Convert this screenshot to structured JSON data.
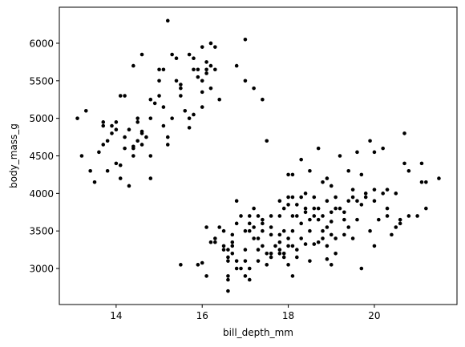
{
  "chart_data": {
    "type": "scatter",
    "title": "",
    "xlabel": "bill_depth_mm",
    "ylabel": "body_mass_g",
    "xlim": [
      12.68,
      21.92
    ],
    "ylim": [
      2520,
      6480
    ],
    "xticks": [
      14,
      16,
      18,
      20
    ],
    "yticks": [
      3000,
      3500,
      4000,
      4500,
      5000,
      5500,
      6000
    ],
    "grid": false,
    "marker_color": "#000000",
    "points": [
      [
        13.1,
        5000
      ],
      [
        13.2,
        4500
      ],
      [
        13.4,
        4300
      ],
      [
        13.5,
        4150
      ],
      [
        13.6,
        4550
      ],
      [
        13.7,
        4650
      ],
      [
        13.7,
        4900
      ],
      [
        13.7,
        4950
      ],
      [
        13.8,
        4700
      ],
      [
        13.8,
        4300
      ],
      [
        13.9,
        4800
      ],
      [
        14.0,
        4400
      ],
      [
        14.0,
        4850
      ],
      [
        14.1,
        4375
      ],
      [
        14.1,
        4200
      ],
      [
        14.2,
        4600
      ],
      [
        14.2,
        4750
      ],
      [
        14.3,
        4850
      ],
      [
        14.4,
        4600
      ],
      [
        14.4,
        4500
      ],
      [
        14.5,
        4950
      ],
      [
        14.5,
        4700
      ],
      [
        14.6,
        4650
      ],
      [
        14.6,
        4800
      ],
      [
        14.7,
        4750
      ],
      [
        14.8,
        5000
      ],
      [
        14.8,
        4500
      ],
      [
        14.9,
        5200
      ],
      [
        15.0,
        5300
      ],
      [
        15.0,
        5500
      ],
      [
        15.1,
        4900
      ],
      [
        15.1,
        5150
      ],
      [
        15.2,
        4650
      ],
      [
        15.3,
        5000
      ],
      [
        15.4,
        5500
      ],
      [
        15.5,
        5300
      ],
      [
        15.6,
        5100
      ],
      [
        15.7,
        5000
      ],
      [
        15.8,
        5050
      ],
      [
        15.9,
        5550
      ],
      [
        16.0,
        5500
      ],
      [
        16.1,
        5650
      ],
      [
        16.2,
        5700
      ],
      [
        16.3,
        5650
      ],
      [
        16.4,
        5250
      ],
      [
        13.3,
        5100
      ],
      [
        14.6,
        5850
      ],
      [
        15.1,
        5650
      ],
      [
        15.2,
        6300
      ],
      [
        15.5,
        5450
      ],
      [
        15.7,
        5850
      ],
      [
        15.8,
        5650
      ],
      [
        16.0,
        5950
      ],
      [
        16.2,
        6000
      ],
      [
        16.3,
        5950
      ],
      [
        16.8,
        5700
      ],
      [
        17.0,
        6050
      ],
      [
        17.2,
        5400
      ],
      [
        17.4,
        5250
      ],
      [
        17.0,
        5500
      ],
      [
        16.1,
        5750
      ],
      [
        15.8,
        5800
      ],
      [
        16.0,
        5350
      ],
      [
        15.4,
        5800
      ],
      [
        15.0,
        5650
      ],
      [
        14.8,
        5250
      ],
      [
        14.4,
        5700
      ],
      [
        14.2,
        5300
      ],
      [
        14.1,
        5300
      ],
      [
        14.0,
        4950
      ],
      [
        14.3,
        4100
      ],
      [
        13.9,
        4900
      ],
      [
        15.7,
        4875
      ],
      [
        15.2,
        4750
      ],
      [
        16.2,
        5400
      ],
      [
        15.3,
        5850
      ],
      [
        15.5,
        5400
      ],
      [
        15.9,
        5650
      ],
      [
        16.1,
        5600
      ],
      [
        16.0,
        5150
      ],
      [
        14.5,
        5000
      ],
      [
        14.4,
        4625
      ],
      [
        14.6,
        4825
      ],
      [
        14.8,
        4200
      ],
      [
        15.5,
        3050
      ],
      [
        15.9,
        3050
      ],
      [
        16.0,
        3075
      ],
      [
        16.1,
        3550
      ],
      [
        16.1,
        2900
      ],
      [
        16.2,
        3350
      ],
      [
        16.3,
        3400
      ],
      [
        16.5,
        3300
      ],
      [
        16.6,
        3150
      ],
      [
        16.6,
        3250
      ],
      [
        16.6,
        2700
      ],
      [
        16.6,
        2850
      ],
      [
        16.6,
        2900
      ],
      [
        16.7,
        3200
      ],
      [
        16.7,
        3350
      ],
      [
        16.8,
        3000
      ],
      [
        16.8,
        3600
      ],
      [
        16.8,
        3900
      ],
      [
        16.9,
        3000
      ],
      [
        17.0,
        3500
      ],
      [
        17.0,
        3250
      ],
      [
        17.0,
        2900
      ],
      [
        17.1,
        3600
      ],
      [
        17.1,
        3700
      ],
      [
        17.1,
        2850
      ],
      [
        17.2,
        3550
      ],
      [
        17.2,
        3400
      ],
      [
        17.3,
        3700
      ],
      [
        17.3,
        3250
      ],
      [
        17.4,
        3500
      ],
      [
        17.4,
        3650
      ],
      [
        17.4,
        3300
      ],
      [
        17.5,
        3200
      ],
      [
        17.6,
        3450
      ],
      [
        17.6,
        3550
      ],
      [
        17.7,
        3300
      ],
      [
        17.8,
        3350
      ],
      [
        17.8,
        3200
      ],
      [
        17.8,
        3450
      ],
      [
        17.9,
        3500
      ],
      [
        17.9,
        3800
      ],
      [
        18.0,
        3950
      ],
      [
        18.0,
        3400
      ],
      [
        18.0,
        3300
      ],
      [
        18.1,
        3500
      ],
      [
        18.1,
        3700
      ],
      [
        18.1,
        3950
      ],
      [
        18.2,
        3700
      ],
      [
        18.2,
        3850
      ],
      [
        18.2,
        3150
      ],
      [
        18.3,
        3400
      ],
      [
        18.3,
        3600
      ],
      [
        18.4,
        3750
      ],
      [
        18.4,
        3325
      ],
      [
        18.5,
        3500
      ],
      [
        18.5,
        4300
      ],
      [
        18.6,
        3700
      ],
      [
        18.6,
        3800
      ],
      [
        18.6,
        3950
      ],
      [
        18.7,
        3800
      ],
      [
        18.7,
        3350
      ],
      [
        18.8,
        3700
      ],
      [
        18.8,
        3500
      ],
      [
        18.9,
        3900
      ],
      [
        18.9,
        3550
      ],
      [
        19.0,
        3750
      ],
      [
        19.0,
        3625
      ],
      [
        19.1,
        3400
      ],
      [
        19.1,
        3800
      ],
      [
        19.2,
        3800
      ],
      [
        19.3,
        3450
      ],
      [
        19.3,
        3650
      ],
      [
        19.4,
        4300
      ],
      [
        19.5,
        3400
      ],
      [
        19.5,
        4050
      ],
      [
        19.6,
        3650
      ],
      [
        19.7,
        3850
      ],
      [
        19.8,
        3950
      ],
      [
        19.9,
        3500
      ],
      [
        20.0,
        4050
      ],
      [
        20.0,
        3900
      ],
      [
        20.1,
        3650
      ],
      [
        20.2,
        4000
      ],
      [
        20.3,
        3700
      ],
      [
        20.5,
        4000
      ],
      [
        20.6,
        3600
      ],
      [
        20.7,
        4400
      ],
      [
        21.1,
        4150
      ],
      [
        21.2,
        4150
      ],
      [
        21.5,
        4200
      ],
      [
        16.6,
        3100
      ],
      [
        16.9,
        3700
      ],
      [
        17.1,
        3500
      ],
      [
        17.3,
        3400
      ],
      [
        17.5,
        4700
      ],
      [
        17.6,
        3700
      ],
      [
        17.8,
        3700
      ],
      [
        17.9,
        3150
      ],
      [
        18.0,
        4250
      ],
      [
        18.1,
        4250
      ],
      [
        18.1,
        3300
      ],
      [
        18.3,
        4450
      ],
      [
        18.4,
        3800
      ],
      [
        18.5,
        3650
      ],
      [
        18.7,
        4600
      ],
      [
        18.8,
        4150
      ],
      [
        18.9,
        4200
      ],
      [
        19.0,
        4100
      ],
      [
        19.1,
        3950
      ],
      [
        19.2,
        4500
      ],
      [
        19.4,
        3900
      ],
      [
        19.5,
        3950
      ],
      [
        19.6,
        4550
      ],
      [
        19.7,
        4250
      ],
      [
        19.9,
        4700
      ],
      [
        20.0,
        4550
      ],
      [
        20.0,
        3300
      ],
      [
        20.2,
        4600
      ],
      [
        20.3,
        4050
      ],
      [
        20.4,
        3450
      ],
      [
        20.7,
        4800
      ],
      [
        20.8,
        4300
      ],
      [
        21.1,
        4400
      ],
      [
        21.2,
        3800
      ],
      [
        16.4,
        3550
      ],
      [
        16.5,
        3500
      ],
      [
        16.7,
        3450
      ],
      [
        17.2,
        3800
      ],
      [
        17.4,
        3600
      ],
      [
        17.6,
        3200
      ],
      [
        17.8,
        3900
      ],
      [
        17.9,
        3200
      ],
      [
        18.0,
        3850
      ],
      [
        18.2,
        3250
      ],
      [
        18.3,
        3950
      ],
      [
        18.4,
        4000
      ],
      [
        18.6,
        3325
      ],
      [
        18.7,
        3650
      ],
      [
        18.8,
        3400
      ],
      [
        18.9,
        3300
      ],
      [
        19.0,
        3450
      ],
      [
        19.1,
        3200
      ],
      [
        19.3,
        3750
      ],
      [
        19.4,
        3550
      ],
      [
        19.6,
        3900
      ],
      [
        19.8,
        4000
      ],
      [
        20.3,
        3800
      ],
      [
        20.5,
        3550
      ],
      [
        20.6,
        3650
      ],
      [
        20.8,
        3700
      ],
      [
        21.0,
        3700
      ],
      [
        16.3,
        3350
      ],
      [
        16.5,
        3250
      ],
      [
        16.7,
        3300
      ],
      [
        17.0,
        3100
      ],
      [
        17.1,
        3000
      ],
      [
        17.3,
        3100
      ],
      [
        17.6,
        3150
      ],
      [
        17.8,
        3250
      ],
      [
        18.0,
        3050
      ],
      [
        18.5,
        3100
      ],
      [
        18.9,
        3125
      ],
      [
        19.0,
        3050
      ],
      [
        19.7,
        3000
      ],
      [
        18.1,
        2900
      ],
      [
        17.5,
        3050
      ],
      [
        16.8,
        3100
      ]
    ]
  }
}
